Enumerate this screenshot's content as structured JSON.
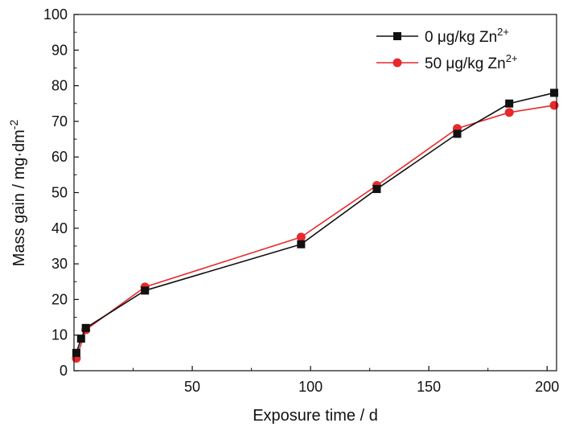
{
  "chart_data": {
    "type": "line",
    "title": "",
    "xlabel": "Exposure time / d",
    "ylabel": "Mass gain / mg·dm",
    "ylabel_superscript": "-2",
    "xlim": [
      0,
      204
    ],
    "ylim": [
      0,
      100
    ],
    "xticks": [
      50,
      100,
      150,
      200
    ],
    "yticks": [
      0,
      10,
      20,
      30,
      40,
      50,
      60,
      70,
      80,
      90,
      100
    ],
    "grid": false,
    "legend_position": "top-right",
    "series": [
      {
        "name": "0 μg/kg Zn",
        "name_superscript": "2+",
        "color": "#111111",
        "marker": "square",
        "x": [
          1,
          3,
          5,
          30,
          96,
          128,
          162,
          184,
          203
        ],
        "y": [
          5,
          9,
          12,
          22.5,
          35.5,
          51,
          66.5,
          75,
          78
        ]
      },
      {
        "name": "50 μg/kg Zn",
        "name_superscript": "2+",
        "color": "#e8282b",
        "marker": "circle",
        "x": [
          1,
          5,
          30,
          96,
          128,
          162,
          184,
          203
        ],
        "y": [
          3.5,
          11.5,
          23.5,
          37.5,
          52,
          68,
          72.5,
          74.5
        ]
      }
    ]
  }
}
